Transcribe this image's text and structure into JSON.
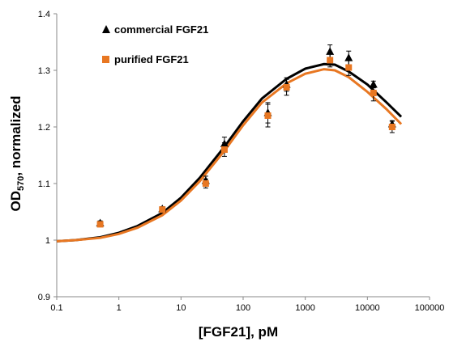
{
  "chart_data": {
    "type": "scatter",
    "xscale": "log",
    "xlim": [
      0.1,
      100000
    ],
    "ylim": [
      0.9,
      1.4
    ],
    "x_ticks": [
      {
        "value": 0.1,
        "label": "0.1"
      },
      {
        "value": 1,
        "label": "1"
      },
      {
        "value": 10,
        "label": "10"
      },
      {
        "value": 100,
        "label": "100"
      },
      {
        "value": 1000,
        "label": "1000"
      },
      {
        "value": 10000,
        "label": "10000"
      },
      {
        "value": 100000,
        "label": "100000"
      }
    ],
    "y_ticks": [
      {
        "value": 0.9,
        "label": "0.9"
      },
      {
        "value": 1.0,
        "label": "1"
      },
      {
        "value": 1.1,
        "label": "1.1"
      },
      {
        "value": 1.2,
        "label": "1.2"
      },
      {
        "value": 1.3,
        "label": "1.3"
      },
      {
        "value": 1.4,
        "label": "1.4"
      }
    ],
    "xlabel": "[FGF21], pM",
    "ylabel_main": "OD",
    "ylabel_sub": "570",
    "ylabel_rest": ", normalized",
    "grid": false,
    "legend_position": "top-left",
    "series": [
      {
        "name": "commercial FGF21",
        "marker": "triangle",
        "color": "#000000",
        "points": [
          {
            "x": 0.5,
            "y": 1.03,
            "err": 0.004
          },
          {
            "x": 5,
            "y": 1.055,
            "err": 0.004
          },
          {
            "x": 25,
            "y": 1.105,
            "err": 0.008
          },
          {
            "x": 50,
            "y": 1.17,
            "err": 0.012
          },
          {
            "x": 250,
            "y": 1.225,
            "err": 0.018
          },
          {
            "x": 500,
            "y": 1.275,
            "err": 0.012
          },
          {
            "x": 2500,
            "y": 1.333,
            "err": 0.012
          },
          {
            "x": 5000,
            "y": 1.322,
            "err": 0.012
          },
          {
            "x": 12500,
            "y": 1.275,
            "err": 0.006
          },
          {
            "x": 25000,
            "y": 1.205,
            "err": 0.006
          }
        ],
        "fit_curve": [
          [
            0.1,
            0.998
          ],
          [
            0.2,
            1.0
          ],
          [
            0.5,
            1.005
          ],
          [
            1,
            1.013
          ],
          [
            2,
            1.025
          ],
          [
            5,
            1.048
          ],
          [
            10,
            1.075
          ],
          [
            20,
            1.11
          ],
          [
            50,
            1.165
          ],
          [
            100,
            1.21
          ],
          [
            200,
            1.25
          ],
          [
            500,
            1.285
          ],
          [
            1000,
            1.303
          ],
          [
            2000,
            1.311
          ],
          [
            3000,
            1.31
          ],
          [
            5000,
            1.298
          ],
          [
            10000,
            1.275
          ],
          [
            20000,
            1.244
          ],
          [
            35000,
            1.218
          ]
        ]
      },
      {
        "name": "purified FGF21",
        "marker": "square",
        "color": "#E87722",
        "points": [
          {
            "x": 0.5,
            "y": 1.028,
            "err": 0.004
          },
          {
            "x": 5,
            "y": 1.054,
            "err": 0.004
          },
          {
            "x": 25,
            "y": 1.1,
            "err": 0.008
          },
          {
            "x": 50,
            "y": 1.16,
            "err": 0.012
          },
          {
            "x": 250,
            "y": 1.22,
            "err": 0.02
          },
          {
            "x": 500,
            "y": 1.27,
            "err": 0.014
          },
          {
            "x": 2500,
            "y": 1.318,
            "err": 0.012
          },
          {
            "x": 5000,
            "y": 1.305,
            "err": 0.014
          },
          {
            "x": 12500,
            "y": 1.26,
            "err": 0.014
          },
          {
            "x": 25000,
            "y": 1.2,
            "err": 0.01
          }
        ],
        "fit_curve": [
          [
            0.1,
            0.998
          ],
          [
            0.2,
            1.0
          ],
          [
            0.5,
            1.004
          ],
          [
            1,
            1.011
          ],
          [
            2,
            1.022
          ],
          [
            5,
            1.044
          ],
          [
            10,
            1.07
          ],
          [
            20,
            1.104
          ],
          [
            50,
            1.158
          ],
          [
            100,
            1.203
          ],
          [
            200,
            1.243
          ],
          [
            500,
            1.277
          ],
          [
            1000,
            1.294
          ],
          [
            2000,
            1.302
          ],
          [
            3000,
            1.3
          ],
          [
            5000,
            1.288
          ],
          [
            10000,
            1.262
          ],
          [
            20000,
            1.232
          ],
          [
            35000,
            1.205
          ]
        ]
      }
    ]
  }
}
